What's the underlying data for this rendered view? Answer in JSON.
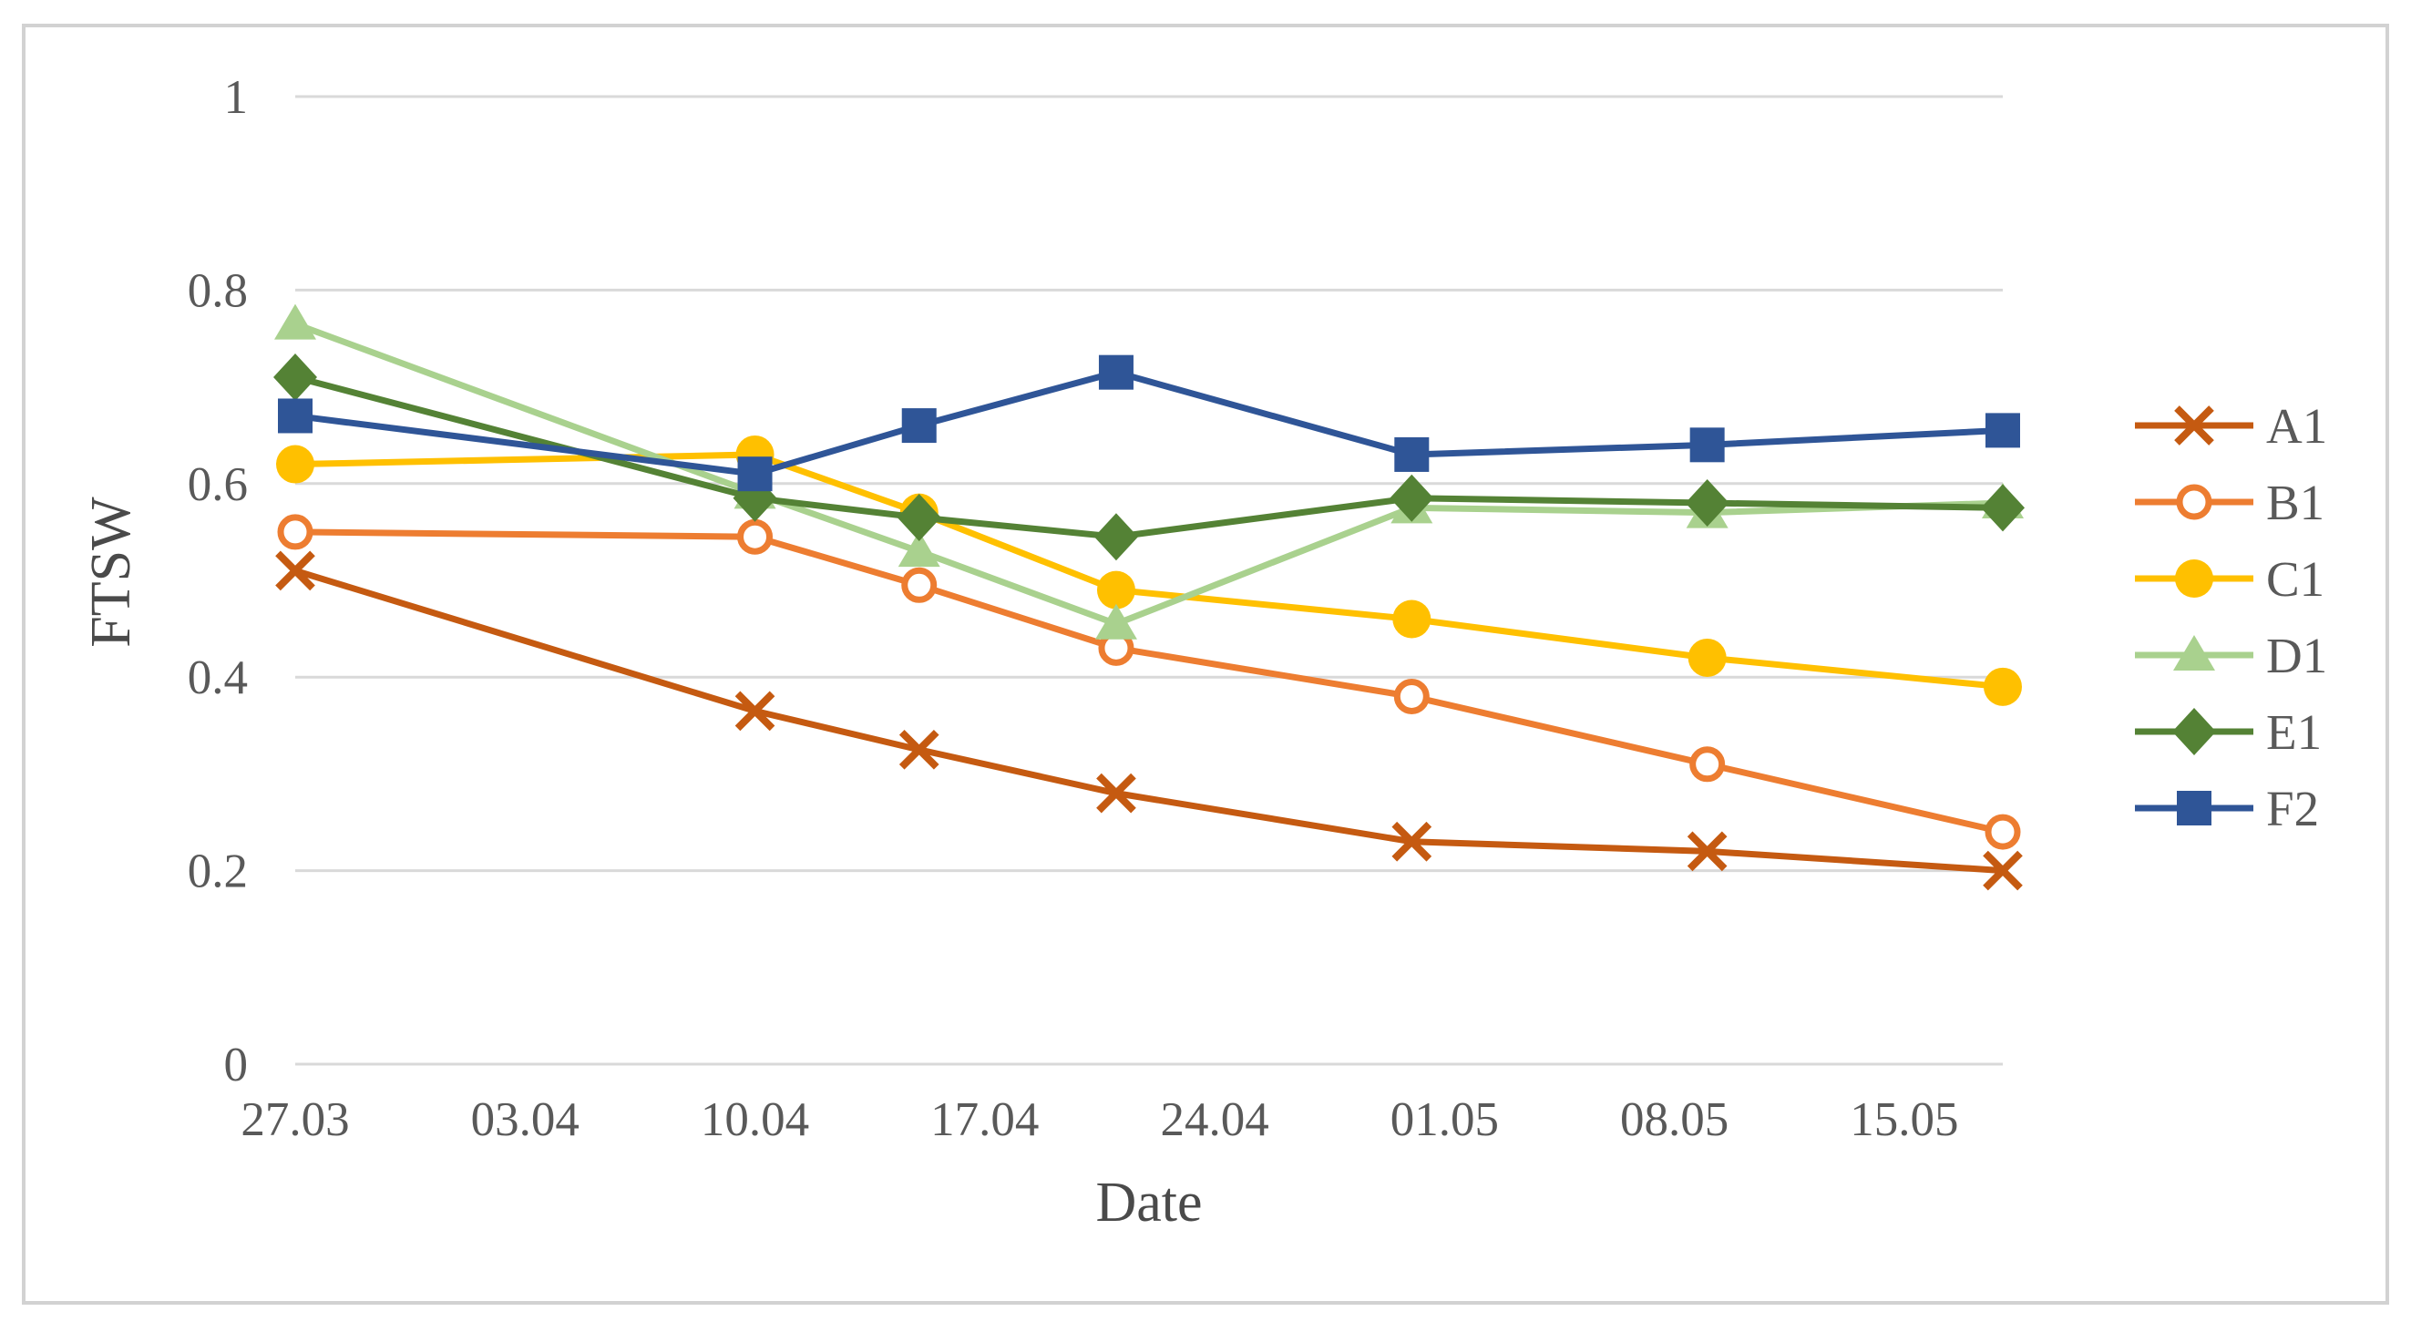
{
  "figure": {
    "background": "#FFFFFF",
    "border_color": "#D2D2D2"
  },
  "chart_data": {
    "type": "line",
    "title": "",
    "xlabel": "Date",
    "ylabel": "FTSW",
    "grid": "horizontal-only",
    "gridline_color": "#D9D9D9",
    "tick_label_color": "#595959",
    "axis_title_color": "#4A4A4A",
    "legend_position": "right",
    "ylim": [
      0,
      1
    ],
    "y_ticks": [
      0,
      0.2,
      0.4,
      0.6,
      0.8,
      1
    ],
    "y_tick_labels": [
      "0",
      "0.2",
      "0.4",
      "0.6",
      "0.8",
      "1"
    ],
    "x_range_days": [
      0,
      52
    ],
    "x_tick_days": [
      0,
      7,
      14,
      21,
      28,
      35,
      42,
      49
    ],
    "x_tick_labels": [
      "27.03",
      "03.04",
      "10.04",
      "17.04",
      "24.04",
      "01.05",
      "08.05",
      "15.05"
    ],
    "point_days": [
      0,
      14,
      19,
      25,
      34,
      43,
      52
    ],
    "point_dates": [
      "27.03",
      "10.04",
      "15.04",
      "21.04",
      "30.04",
      "09.05",
      "18.05"
    ],
    "series": [
      {
        "name": "A1",
        "marker": "x",
        "color": "#C55A11",
        "values": [
          0.51,
          0.365,
          0.325,
          0.28,
          0.23,
          0.22,
          0.2
        ]
      },
      {
        "name": "B1",
        "marker": "open-circle",
        "color": "#ED7D31",
        "values": [
          0.55,
          0.545,
          0.495,
          0.43,
          0.38,
          0.31,
          0.24
        ]
      },
      {
        "name": "C1",
        "marker": "circle",
        "color": "#FFC000",
        "values": [
          0.62,
          0.63,
          0.57,
          0.49,
          0.46,
          0.42,
          0.39
        ]
      },
      {
        "name": "D1",
        "marker": "triangle",
        "color": "#A9D18E",
        "values": [
          0.765,
          0.59,
          0.53,
          0.455,
          0.575,
          0.57,
          0.58
        ]
      },
      {
        "name": "E1",
        "marker": "diamond",
        "color": "#548235",
        "values": [
          0.71,
          0.585,
          0.565,
          0.545,
          0.585,
          0.58,
          0.575
        ]
      },
      {
        "name": "F2",
        "marker": "square",
        "color": "#2F5597",
        "values": [
          0.67,
          0.61,
          0.66,
          0.715,
          0.63,
          0.64,
          0.655
        ]
      }
    ]
  }
}
